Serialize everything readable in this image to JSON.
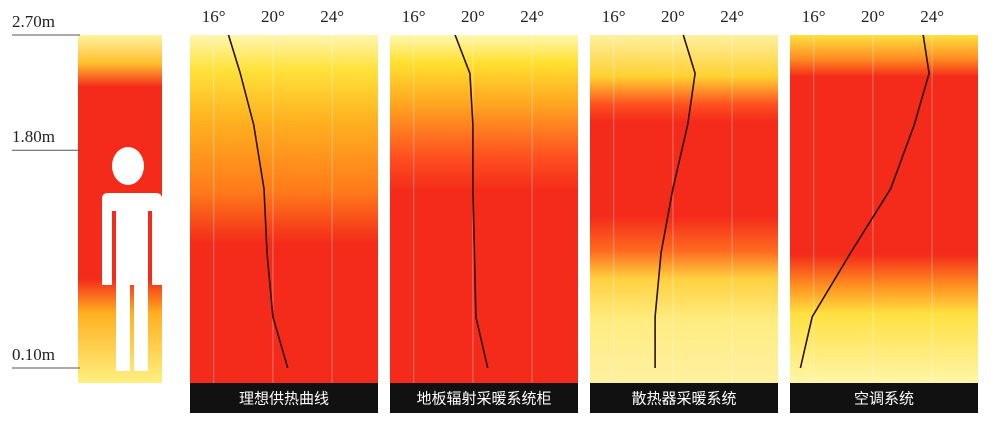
{
  "chart_data": [
    {
      "type": "line",
      "title": "理想供热曲线",
      "ylim": [
        0.1,
        2.7
      ],
      "xlim": [
        14.4,
        27.1
      ],
      "yticks": [
        {
          "value": 0.1,
          "label": "0.10m"
        },
        {
          "value": 1.8,
          "label": "1.80m"
        },
        {
          "value": 2.7,
          "label": "2.70m"
        }
      ],
      "xticks": [
        {
          "value": 16,
          "label": "16°"
        },
        {
          "value": 20,
          "label": "20°"
        },
        {
          "value": 24,
          "label": "24°"
        }
      ],
      "y": [
        0.1,
        0.5,
        1.0,
        1.5,
        2.0,
        2.4,
        2.7
      ],
      "series": [
        {
          "color": "#2a1208",
          "values": [
            21,
            20,
            19.6,
            19.4,
            18.7,
            17.8,
            17
          ]
        }
      ]
    },
    {
      "type": "line",
      "title": "地板辐射采暖系统柜",
      "ylim": [
        0.1,
        2.7
      ],
      "xlim": [
        14.4,
        27.1
      ],
      "xticks": [
        {
          "value": 16,
          "label": "16°"
        },
        {
          "value": 20,
          "label": "20°"
        },
        {
          "value": 24,
          "label": "24°"
        }
      ],
      "y": [
        0.1,
        0.5,
        1.0,
        1.5,
        2.0,
        2.4,
        2.7
      ],
      "series": [
        {
          "color": "#2a1208",
          "values": [
            21,
            20.2,
            20.1,
            20,
            20,
            19.8,
            18.8
          ]
        }
      ]
    },
    {
      "type": "line",
      "title": "散热器采暖系统",
      "ylim": [
        0.1,
        2.7
      ],
      "xlim": [
        14.4,
        27.1
      ],
      "xticks": [
        {
          "value": 16,
          "label": "16°"
        },
        {
          "value": 20,
          "label": "20°"
        },
        {
          "value": 24,
          "label": "24°"
        }
      ],
      "y": [
        0.1,
        0.5,
        1.0,
        1.5,
        2.0,
        2.4,
        2.7
      ],
      "series": [
        {
          "color": "#2a1208",
          "values": [
            18.8,
            18.8,
            19.2,
            20,
            21,
            21.5,
            20.7
          ]
        }
      ]
    },
    {
      "type": "line",
      "title": "空调系统",
      "ylim": [
        0.1,
        2.7
      ],
      "xlim": [
        14.4,
        27.1
      ],
      "xticks": [
        {
          "value": 16,
          "label": "16°"
        },
        {
          "value": 20,
          "label": "20°"
        },
        {
          "value": 24,
          "label": "24°"
        }
      ],
      "y": [
        0.1,
        0.5,
        1.0,
        1.5,
        2.0,
        2.4,
        2.7
      ],
      "series": [
        {
          "color": "#2a1208",
          "values": [
            15.1,
            15.9,
            18.5,
            21.2,
            22.8,
            23.8,
            23.4
          ]
        }
      ]
    }
  ]
}
